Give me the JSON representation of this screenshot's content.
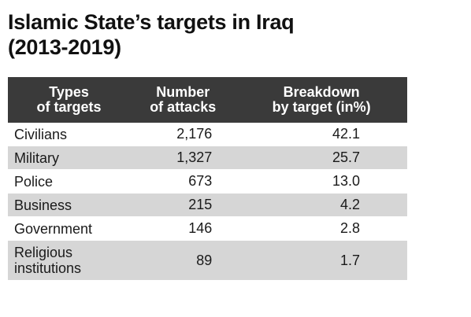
{
  "title_lines": [
    "Islamic State’s targets in Iraq",
    "(2013-2019)"
  ],
  "chart_data": {
    "type": "table",
    "title": "Islamic State’s targets in Iraq (2013-2019)",
    "columns": [
      [
        "Types",
        "of targets"
      ],
      [
        "Number",
        "of attacks"
      ],
      [
        "Breakdown",
        "by target (in%)"
      ]
    ],
    "rows": [
      {
        "type": [
          "Civilians"
        ],
        "attacks": "2,176",
        "breakdown": "42.1"
      },
      {
        "type": [
          "Military"
        ],
        "attacks": "1,327",
        "breakdown": "25.7"
      },
      {
        "type": [
          "Police"
        ],
        "attacks": "673",
        "breakdown": "13.0"
      },
      {
        "type": [
          "Business"
        ],
        "attacks": "215",
        "breakdown": "4.2"
      },
      {
        "type": [
          "Government"
        ],
        "attacks": "146",
        "breakdown": "2.8"
      },
      {
        "type": [
          "Religious",
          "institutions"
        ],
        "attacks": "89",
        "breakdown": "1.7"
      }
    ],
    "colors": {
      "header_bg": "#3a3a3a",
      "header_text": "#ffffff",
      "stripe": "#d6d6d6"
    }
  }
}
